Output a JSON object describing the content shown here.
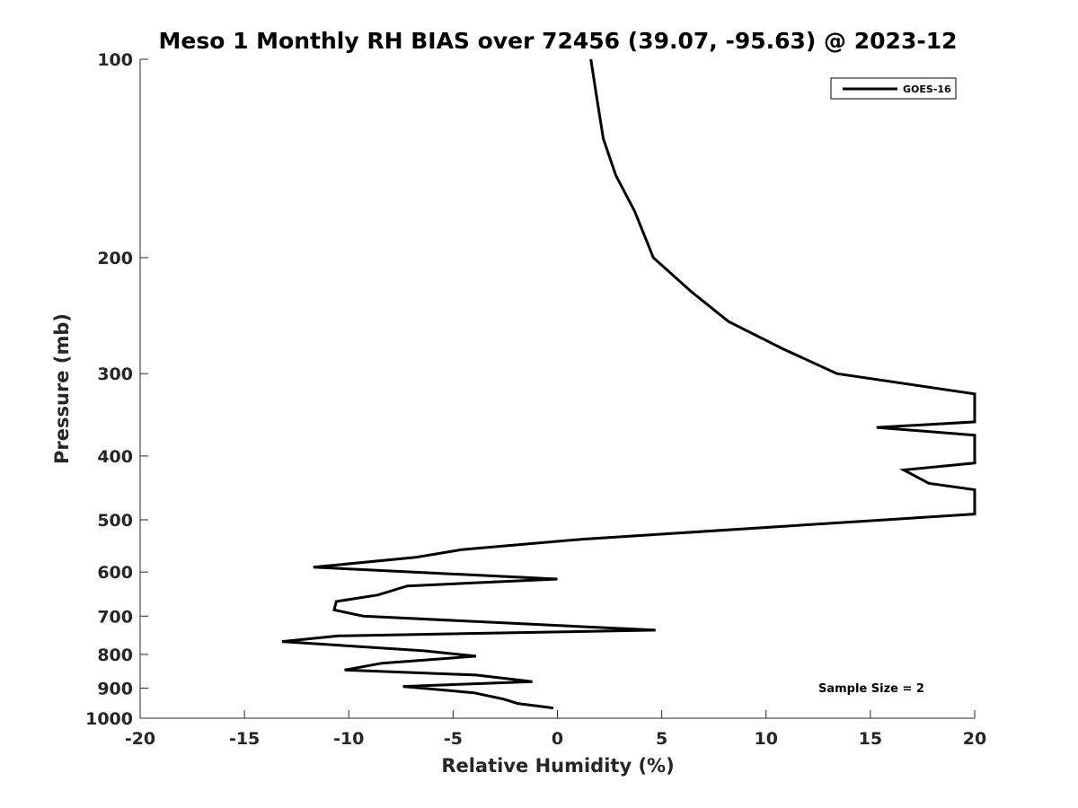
{
  "chart_data": {
    "type": "line",
    "title": "Meso 1 Monthly RH BIAS over 72456 (39.07, -95.63) @ 2023-12",
    "xlabel": "Relative Humidity (%)",
    "ylabel": "Pressure (mb)",
    "xlim": [
      -20,
      20
    ],
    "ylim": [
      1000,
      100
    ],
    "y_scale": "log",
    "y_reversed": true,
    "grid": false,
    "legend_position": "top-right",
    "x_ticks": [
      "-20",
      "-15",
      "-10",
      "-5",
      "0",
      "5",
      "10",
      "15",
      "20"
    ],
    "y_ticks": [
      "100",
      "200",
      "300",
      "400",
      "500",
      "600",
      "700",
      "800",
      "900",
      "1000"
    ],
    "annotation": "Sample Size = 2",
    "series": [
      {
        "name": "GOES-16",
        "color": "#000000",
        "x": [
          1.6,
          1.9,
          2.2,
          2.8,
          3.7,
          4.6,
          6.4,
          8.2,
          10.8,
          13.4,
          20,
          20,
          15.3,
          20,
          20,
          16.6,
          17.8,
          20,
          20,
          1.2,
          -4.6,
          -6.8,
          -11.7,
          0,
          -7.2,
          -8.6,
          -10.6,
          -10.7,
          -9.3,
          4.7,
          -10.5,
          -13.2,
          -6.4,
          -3.9,
          -8.4,
          -10.2,
          -3.9,
          -1.2,
          -7.4,
          -4.0,
          -2.6,
          -1.9,
          -0.2
        ],
        "y": [
          100,
          115,
          132,
          150,
          170,
          200,
          225,
          250,
          275,
          300,
          322,
          355,
          362,
          372,
          410,
          420,
          440,
          450,
          490,
          535,
          555,
          570,
          590,
          615,
          630,
          650,
          665,
          685,
          700,
          735,
          750,
          765,
          790,
          805,
          825,
          845,
          860,
          880,
          895,
          915,
          935,
          950,
          965
        ]
      }
    ]
  }
}
